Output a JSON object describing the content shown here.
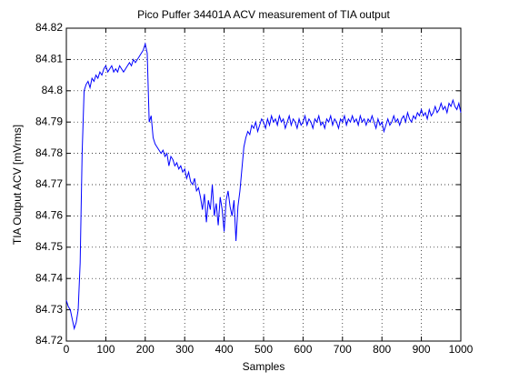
{
  "chart_data": {
    "type": "line",
    "title": "Pico Puffer 34401A ACV measurement of TIA output",
    "xlabel": "Samples",
    "ylabel": "TIA Output ACV [mVrms]",
    "color": "#0000ff",
    "grid": true,
    "xlim": [
      0,
      1000
    ],
    "ylim": [
      84.72,
      84.82
    ],
    "xticks": [
      0,
      100,
      200,
      300,
      400,
      500,
      600,
      700,
      800,
      900,
      1000
    ],
    "yticks": [
      84.72,
      84.73,
      84.74,
      84.75,
      84.76,
      84.77,
      84.78,
      84.79,
      84.8,
      84.81,
      84.82
    ],
    "x": [
      0,
      5,
      10,
      15,
      20,
      25,
      30,
      35,
      40,
      45,
      50,
      55,
      60,
      65,
      70,
      75,
      80,
      85,
      90,
      95,
      100,
      105,
      110,
      115,
      120,
      125,
      130,
      135,
      140,
      145,
      150,
      155,
      160,
      165,
      170,
      175,
      180,
      185,
      190,
      195,
      200,
      205,
      210,
      215,
      220,
      225,
      230,
      235,
      240,
      245,
      250,
      255,
      260,
      265,
      270,
      275,
      280,
      285,
      290,
      295,
      300,
      305,
      310,
      315,
      320,
      325,
      330,
      335,
      340,
      345,
      350,
      355,
      360,
      365,
      370,
      375,
      380,
      385,
      390,
      395,
      400,
      405,
      410,
      415,
      420,
      425,
      430,
      435,
      440,
      445,
      450,
      455,
      460,
      465,
      470,
      475,
      480,
      485,
      490,
      495,
      500,
      505,
      510,
      515,
      520,
      525,
      530,
      535,
      540,
      545,
      550,
      555,
      560,
      565,
      570,
      575,
      580,
      585,
      590,
      595,
      600,
      605,
      610,
      615,
      620,
      625,
      630,
      635,
      640,
      645,
      650,
      655,
      660,
      665,
      670,
      675,
      680,
      685,
      690,
      695,
      700,
      705,
      710,
      715,
      720,
      725,
      730,
      735,
      740,
      745,
      750,
      755,
      760,
      765,
      770,
      775,
      780,
      785,
      790,
      795,
      800,
      805,
      810,
      815,
      820,
      825,
      830,
      835,
      840,
      845,
      850,
      855,
      860,
      865,
      870,
      875,
      880,
      885,
      890,
      895,
      900,
      905,
      910,
      915,
      920,
      925,
      930,
      935,
      940,
      945,
      950,
      955,
      960,
      965,
      970,
      975,
      980,
      985,
      990,
      995,
      1000
    ],
    "values": [
      84.733,
      84.731,
      84.73,
      84.727,
      84.724,
      84.726,
      84.73,
      84.745,
      84.78,
      84.8,
      84.802,
      84.803,
      84.801,
      84.804,
      84.803,
      84.805,
      84.804,
      84.806,
      84.805,
      84.807,
      84.808,
      84.806,
      84.807,
      84.808,
      84.806,
      84.807,
      84.806,
      84.808,
      84.807,
      84.806,
      84.807,
      84.808,
      84.809,
      84.808,
      84.81,
      84.809,
      84.81,
      84.811,
      84.812,
      84.813,
      84.815,
      84.812,
      84.79,
      84.792,
      84.785,
      84.783,
      84.782,
      84.781,
      84.78,
      84.781,
      84.779,
      84.78,
      84.776,
      84.779,
      84.778,
      84.776,
      84.777,
      84.775,
      84.776,
      84.774,
      84.775,
      84.772,
      84.774,
      84.771,
      84.77,
      84.772,
      84.768,
      84.769,
      84.766,
      84.762,
      84.767,
      84.758,
      84.765,
      84.762,
      84.77,
      84.76,
      84.764,
      84.757,
      84.766,
      84.762,
      84.755,
      84.765,
      84.768,
      84.763,
      84.76,
      84.765,
      84.752,
      84.763,
      84.768,
      84.775,
      84.782,
      84.785,
      84.787,
      84.786,
      84.789,
      84.788,
      84.79,
      84.787,
      84.789,
      84.791,
      84.79,
      84.788,
      84.791,
      84.789,
      84.792,
      84.79,
      84.791,
      84.789,
      84.792,
      84.79,
      84.791,
      84.788,
      84.79,
      84.792,
      84.789,
      84.791,
      84.79,
      84.788,
      84.791,
      84.789,
      84.79,
      84.792,
      84.789,
      84.791,
      84.79,
      84.788,
      84.791,
      84.79,
      84.792,
      84.789,
      84.79,
      84.788,
      84.791,
      84.79,
      84.792,
      84.789,
      84.791,
      84.79,
      84.788,
      84.791,
      84.79,
      84.792,
      84.789,
      84.791,
      84.79,
      84.792,
      84.79,
      84.791,
      84.789,
      84.792,
      84.79,
      84.791,
      84.789,
      84.791,
      84.79,
      84.792,
      84.79,
      84.788,
      84.791,
      84.789,
      84.79,
      84.787,
      84.789,
      84.791,
      84.789,
      84.79,
      84.792,
      84.79,
      84.791,
      84.789,
      84.791,
      84.792,
      84.79,
      84.793,
      84.791,
      84.79,
      84.792,
      84.791,
      84.793,
      84.792,
      84.794,
      84.792,
      84.793,
      84.791,
      84.794,
      84.792,
      84.793,
      84.795,
      84.793,
      84.794,
      84.796,
      84.794,
      84.795,
      84.793,
      84.796,
      84.795,
      84.797,
      84.795,
      84.794,
      84.796,
      84.793
    ]
  }
}
